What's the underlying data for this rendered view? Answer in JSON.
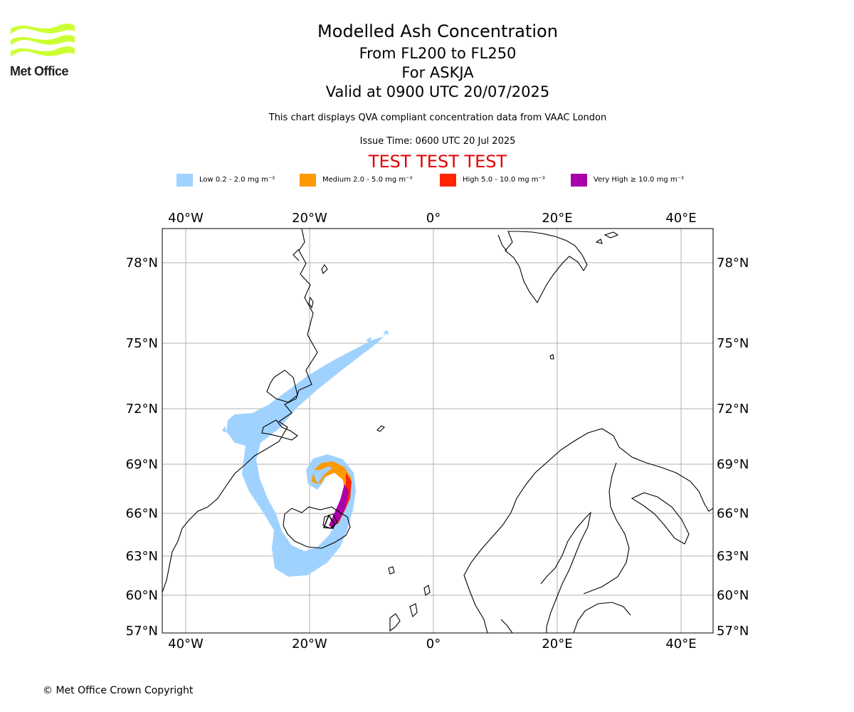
{
  "logo": {
    "text": "Met Office",
    "icon": "met-office-wave-logo",
    "color": "#ccff33"
  },
  "header": {
    "title": "Modelled Ash Concentration",
    "line2": "From FL200 to FL250",
    "line3": "For ASKJA",
    "line4": "Valid at 0900 UTC 20/07/2025",
    "note": "This chart displays QVA compliant concentration data from VAAC London",
    "issue_time": "Issue Time: 0600 UTC 20 Jul 2025",
    "test_banner": "TEST TEST TEST",
    "test_color": "#e00000"
  },
  "legend": [
    {
      "label": "Low 0.2 - 2.0 mg m⁻³",
      "color": "#a0d2ff"
    },
    {
      "label": "Medium 2.0 - 5.0 mg m⁻³",
      "color": "#ff9900"
    },
    {
      "label": "High 5.0 - 10.0 mg m⁻³",
      "color": "#ff2600"
    },
    {
      "label": "Very High ≥ 10.0 mg m⁻³",
      "color": "#aa00aa"
    }
  ],
  "map": {
    "lon_ticks": [
      "40°W",
      "20°W",
      "0°",
      "20°E",
      "40°E"
    ],
    "lat_ticks": [
      "78°N",
      "75°N",
      "72°N",
      "69°N",
      "66°N",
      "63°N",
      "60°N",
      "57°N"
    ],
    "volcano": "ASKJA",
    "grid": true
  },
  "footer": {
    "copyright": "© Met Office Crown Copyright"
  }
}
